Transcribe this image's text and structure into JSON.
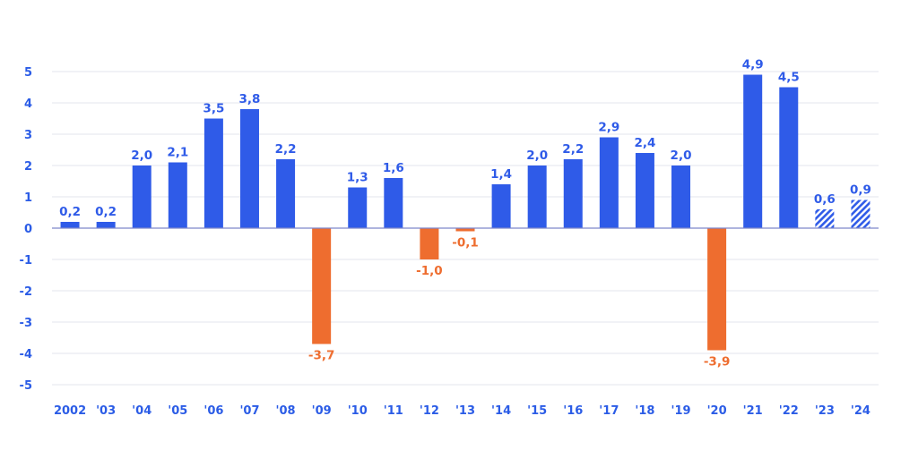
{
  "chart_data": {
    "type": "bar",
    "categories": [
      "2002",
      "'03",
      "'04",
      "'05",
      "'06",
      "'07",
      "'08",
      "'09",
      "'10",
      "'11",
      "'12",
      "'13",
      "'14",
      "'15",
      "'16",
      "'17",
      "'18",
      "'19",
      "'20",
      "'21",
      "'22",
      "'23",
      "'24"
    ],
    "values": [
      0.2,
      0.2,
      2.0,
      2.1,
      3.5,
      3.8,
      2.2,
      -3.7,
      1.3,
      1.6,
      -1.0,
      -0.1,
      1.4,
      2.0,
      2.2,
      2.9,
      2.4,
      2.0,
      -3.9,
      4.9,
      4.5,
      0.6,
      0.9
    ],
    "value_labels": [
      "0,2",
      "0,2",
      "2,0",
      "2,1",
      "3,5",
      "3,8",
      "2,2",
      "-3,7",
      "1,3",
      "1,6",
      "-1,0",
      "-0,1",
      "1,4",
      "2,0",
      "2,2",
      "2,9",
      "2,4",
      "2,0",
      "-3,9",
      "4,9",
      "4,5",
      "0,6",
      "0,9"
    ],
    "forecast": [
      false,
      false,
      false,
      false,
      false,
      false,
      false,
      false,
      false,
      false,
      false,
      false,
      false,
      false,
      false,
      false,
      false,
      false,
      false,
      false,
      false,
      true,
      true
    ],
    "yticks": [
      5,
      4,
      3,
      2,
      1,
      0,
      -1,
      -2,
      -3,
      -4,
      -5
    ],
    "ylim": [
      -5,
      5
    ],
    "grid": true,
    "colors": {
      "positive": "#2f5be8",
      "negative": "#ee6d2f",
      "tick_text": "#2b5ce6",
      "grid": "#e3e6ec",
      "zero_line": "#7d86c9"
    }
  }
}
